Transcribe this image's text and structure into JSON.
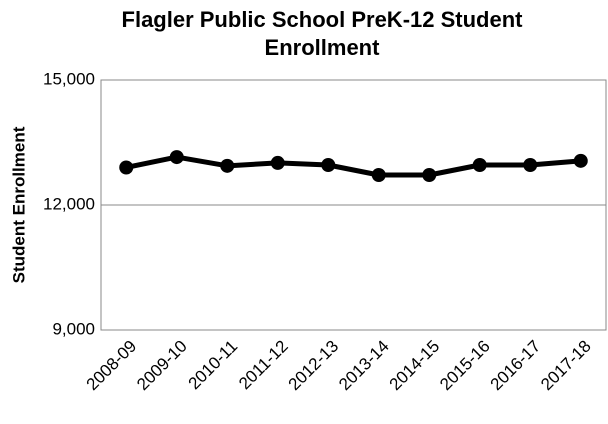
{
  "chart_data": {
    "type": "line",
    "title": "Flagler Public School PreK-12 Student Enrollment",
    "y_label": "Student Enrollment",
    "categories": [
      "2008-09",
      "2009-10",
      "2010-11",
      "2011-12",
      "2012-13",
      "2013-14",
      "2014-15",
      "2015-16",
      "2016-17",
      "2017-18"
    ],
    "values": [
      12900,
      13150,
      12940,
      13010,
      12960,
      12720,
      12720,
      12960,
      12960,
      13060
    ],
    "color": "#000000",
    "ylim": [
      9000,
      15000
    ],
    "yticks": [
      {
        "value": 9000,
        "label": "9,000"
      },
      {
        "value": 12000,
        "label": "12,000"
      },
      {
        "value": 15000,
        "label": "15,000"
      }
    ],
    "grid": true
  }
}
